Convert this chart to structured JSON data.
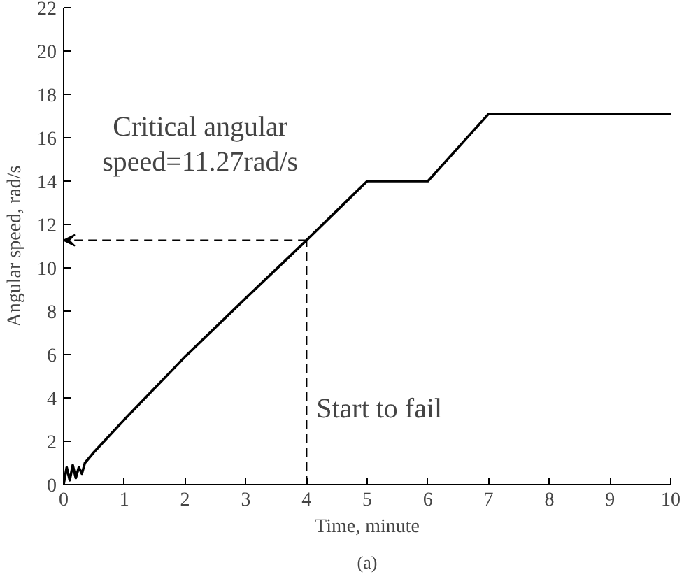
{
  "chart_data": {
    "type": "line",
    "title": "(a)",
    "xlabel": "Time, minute",
    "ylabel": "Angular speed, rad/s",
    "xlim": [
      0,
      10
    ],
    "ylim": [
      0,
      22
    ],
    "xticks": [
      0,
      1,
      2,
      3,
      4,
      5,
      6,
      7,
      8,
      9,
      10
    ],
    "yticks": [
      0,
      2,
      4,
      6,
      8,
      10,
      12,
      14,
      16,
      18,
      20,
      22
    ],
    "grid": false,
    "marker": "none",
    "series": [
      {
        "color": "#000000",
        "line_style": "solid",
        "x": [
          0,
          0.05,
          0.1,
          0.15,
          0.2,
          0.25,
          0.3,
          0.35,
          0.5,
          1,
          2,
          3,
          4,
          5,
          6,
          7,
          10
        ],
        "values": [
          0,
          0.8,
          0.2,
          0.9,
          0.3,
          0.8,
          0.5,
          1.0,
          1.5,
          3.0,
          5.9,
          8.6,
          11.27,
          14,
          14,
          17.1,
          17.1
        ]
      },
      {
        "color": "#000000",
        "line_style": "dashed",
        "x": [
          4,
          4
        ],
        "values": [
          0,
          11.27
        ]
      }
    ],
    "annotations": [
      {
        "text": "Critical angular\nspeed=11.27rad/s",
        "x": 4,
        "y": 11.27
      },
      {
        "text": "Start to fail",
        "x": 4,
        "y": 0
      }
    ]
  }
}
